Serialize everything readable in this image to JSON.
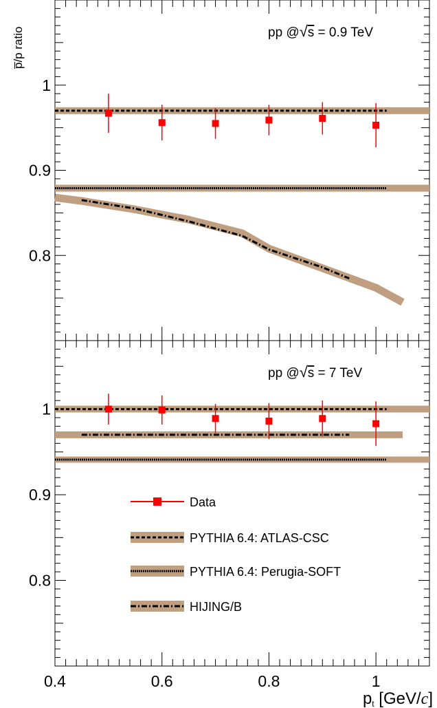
{
  "y_axis_label": "p̅/p ratio",
  "x_axis_label": "p",
  "x_axis_sub": "t",
  "x_axis_units_open": " [GeV/",
  "x_axis_units_c": "c",
  "x_axis_units_close": "]",
  "legend": {
    "data": "Data",
    "atlas": "PYTHIA 6.4: ATLAS-CSC",
    "perugia": "PYTHIA 6.4: Perugia-SOFT",
    "hijing": "HIJING/B"
  },
  "colors": {
    "data": "#ff0000",
    "band": "#bf9f80",
    "line": "#000000"
  },
  "chart_data": [
    {
      "type": "line",
      "annotation": "pp @√s = 0.9 TeV",
      "annotation_prefix": "pp  @",
      "annotation_sqrt": "√",
      "annotation_s": "s",
      "annotation_suffix": " = 0.9 TeV",
      "xlim": [
        0.4,
        1.1
      ],
      "ylim": [
        0.7,
        1.1
      ],
      "y_ticks": [
        0.8,
        0.9,
        1.0
      ],
      "y_tick_labels": [
        "0.8",
        "0.9",
        "1"
      ],
      "series": [
        {
          "key": "data",
          "x": [
            0.5,
            0.6,
            0.7,
            0.8,
            0.9,
            1.0
          ],
          "y": [
            0.967,
            0.956,
            0.955,
            0.959,
            0.961,
            0.953
          ],
          "err": [
            0.023,
            0.021,
            0.018,
            0.018,
            0.019,
            0.026
          ]
        },
        {
          "key": "atlas",
          "band_x": [
            0.4,
            1.1
          ],
          "band_y": [
            0.97,
            0.97
          ],
          "band_half": 0.004,
          "line_x": [
            0.4,
            1.02
          ],
          "line_y": [
            0.97,
            0.97
          ]
        },
        {
          "key": "perugia",
          "band_x": [
            0.4,
            1.1
          ],
          "band_y": [
            0.879,
            0.879
          ],
          "band_half": 0.004,
          "line_x": [
            0.4,
            1.02
          ],
          "line_y": [
            0.879,
            0.879
          ]
        },
        {
          "key": "hijing",
          "band_x": [
            0.4,
            0.45,
            0.55,
            0.65,
            0.75,
            0.8,
            0.9,
            1.0,
            1.05
          ],
          "band_y": [
            0.868,
            0.864,
            0.854,
            0.842,
            0.826,
            0.808,
            0.785,
            0.762,
            0.745
          ],
          "band_half": 0.0045,
          "line_x": [
            0.45,
            0.55,
            0.65,
            0.75,
            0.8,
            0.9,
            0.95
          ],
          "line_y": [
            0.865,
            0.855,
            0.84,
            0.823,
            0.807,
            0.786,
            0.773
          ]
        }
      ]
    },
    {
      "type": "line",
      "annotation": "pp @√s = 7 TeV",
      "annotation_prefix": "pp  @",
      "annotation_sqrt": "√",
      "annotation_s": "s",
      "annotation_suffix": " = 7 TeV",
      "xlim": [
        0.4,
        1.1
      ],
      "ylim": [
        0.7,
        1.08
      ],
      "y_ticks": [
        0.8,
        0.9,
        1.0
      ],
      "y_tick_labels": [
        "0.8",
        "0.9",
        "1"
      ],
      "x_ticks": [
        0.4,
        0.6,
        0.8,
        1.0
      ],
      "x_tick_labels": [
        "0.4",
        "0.6",
        "0.8",
        "1"
      ],
      "series": [
        {
          "key": "data",
          "x": [
            0.5,
            0.6,
            0.7,
            0.8,
            0.9,
            1.0
          ],
          "y": [
            1.0,
            0.999,
            0.989,
            0.986,
            0.989,
            0.983
          ],
          "err": [
            0.018,
            0.017,
            0.017,
            0.021,
            0.021,
            0.026
          ]
        },
        {
          "key": "atlas",
          "band_x": [
            0.4,
            1.1
          ],
          "band_y": [
            1.0,
            1.0
          ],
          "band_half": 0.004,
          "line_x": [
            0.4,
            1.02
          ],
          "line_y": [
            1.0,
            1.0
          ]
        },
        {
          "key": "hijing",
          "band_x": [
            0.4,
            1.05
          ],
          "band_y": [
            0.97,
            0.97
          ],
          "band_half": 0.004,
          "line_x": [
            0.45,
            0.95
          ],
          "line_y": [
            0.97,
            0.97
          ]
        },
        {
          "key": "perugia",
          "band_x": [
            0.4,
            1.1
          ],
          "band_y": [
            0.941,
            0.941
          ],
          "band_half": 0.003,
          "line_x": [
            0.4,
            1.02
          ],
          "line_y": [
            0.941,
            0.941
          ]
        }
      ]
    }
  ]
}
